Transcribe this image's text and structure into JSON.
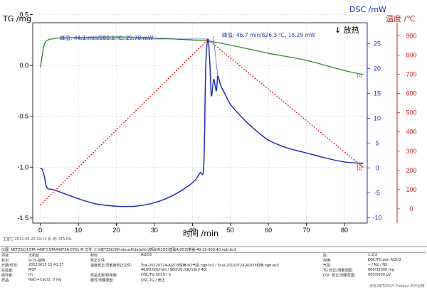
{
  "chart_data": {
    "type": "line",
    "xlabel": "时间 /min",
    "ylabel_left": "TG /mg",
    "ylabel_right1": "DSC /mW",
    "ylabel_right2": "温度 /℃",
    "exo_label": "↓ 放热",
    "xlim": [
      -2,
      86
    ],
    "x_ticks": [
      "0",
      "10",
      "20",
      "30",
      "40",
      "50",
      "60",
      "70",
      "80"
    ],
    "tg_ylim": [
      -1.55,
      0.42
    ],
    "tg_ticks": [
      "0.5",
      "0.0",
      "-0.5",
      "-1.0",
      "-1.5"
    ],
    "dsc_ylim": [
      -11.1,
      29.2
    ],
    "dsc_ticks": [
      "25",
      "20",
      "15",
      "10",
      "5",
      "0",
      "-5",
      "-10"
    ],
    "temp_ylim": [
      -74,
      968
    ],
    "temp_ticks": [
      "900",
      "800",
      "700",
      "600",
      "500",
      "400",
      "300",
      "200",
      "100",
      "0"
    ],
    "annotations": [
      "峰值: 44.1 min/880.6 ℃, 25.78 mW",
      "峰值: 46.7 min/826.3 ℃, 18.29 mW"
    ],
    "series": [
      {
        "name": "TG",
        "color": "#2e8b2e",
        "axis": "tg",
        "end_tag": "[1]",
        "x": [
          0,
          1,
          2,
          3,
          5,
          10,
          20,
          30,
          40,
          44,
          50,
          60,
          70,
          80,
          85
        ],
        "y": [
          -0.02,
          0.2,
          0.25,
          0.26,
          0.27,
          0.275,
          0.28,
          0.27,
          0.25,
          0.24,
          0.2,
          0.12,
          0.05,
          -0.05,
          -0.09
        ]
      },
      {
        "name": "DSC",
        "color": "#1f2fb5",
        "axis": "dsc",
        "end_tag": "[1]",
        "x": [
          0,
          0.5,
          1,
          1.5,
          2,
          3,
          5,
          10,
          15,
          20,
          25,
          30,
          35,
          40,
          42,
          43,
          43.5,
          44.1,
          44.6,
          45,
          45.6,
          46.3,
          46.7,
          47.5,
          48.5,
          50,
          53,
          56,
          60,
          65,
          70,
          75,
          80,
          85
        ],
        "y": [
          -0.1,
          -0.3,
          -1.5,
          -3.5,
          -4.2,
          -4.3,
          -4.8,
          -6.2,
          -7.3,
          -7.7,
          -7.7,
          -7.0,
          -5.5,
          -3.0,
          -1.0,
          0.5,
          20.0,
          25.78,
          21.0,
          14.5,
          17.8,
          15.5,
          18.29,
          16.5,
          15.0,
          12.8,
          10.2,
          8.0,
          5.6,
          4.0,
          3.0,
          2.0,
          1.2,
          0.9
        ]
      },
      {
        "name": "温度",
        "color": "#d22020",
        "axis": "temp",
        "dashed": true,
        "end_tag": "[1]",
        "x": [
          0,
          44.1,
          85
        ],
        "y": [
          20,
          880.6,
          215
        ]
      }
    ]
  },
  "footer": {
    "operator_line": "主室它  2012-09-25 10:14   系 统:   STA-DIL",
    "header": "仪器: NETZSCH STA 449F3 STA449F3A-0701-M    文件: C:\\NETZSCH\\Proteus6\\data\\lin\\基础\\Al2O3\\基础Al2O3\\带盖-40-20-900-40.ngb-bs3",
    "rows": [
      [
        "项目:",
        "无机盐",
        "材料:",
        "Al2O3",
        "段:",
        "1-2/2"
      ],
      [
        "标识:",
        "9-15-基础",
        "校正文件:",
        "",
        "坩埚:",
        "DSC/TG pan Al2O3"
      ],
      [
        "日期/时间:",
        "2012/9/15 11:41:37",
        "温度校正/灵敏度校正文件:",
        "Tcal-20120724-Al2O3坩埚-N2气氛.ngb-ts3 / Scal-20120724-Al2O3坩埚.ngb-es3",
        "气氛:",
        "-- / N2 / N2"
      ],
      [
        "实验室:",
        "MOF",
        "",
        "40/20.0(K/min)/ 900/20.0(K/min)/ 40/",
        "TG 校正/测量范围:",
        "000/35000 mg"
      ],
      [
        "操作者:",
        "lin",
        "样品支架/热电偶:",
        "DSC/TG Std S / S",
        "DSC 校正/测量范围:",
        "000/5000 µV"
      ],
      [
        "样品:",
        "NaCl+CaCl2, 0 mg",
        "模式/测量类型:",
        "DSC-TG / 修正",
        "",
        ""
      ]
    ],
    "credit": "使用 NETZSCH Proteus 软件创建"
  }
}
